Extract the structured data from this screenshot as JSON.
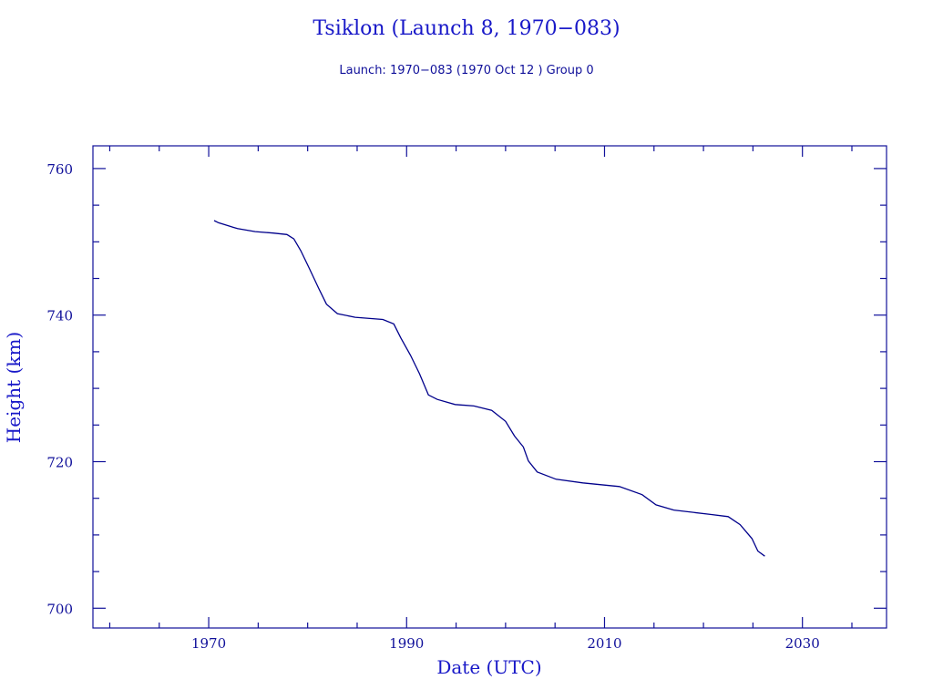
{
  "chart_data": {
    "type": "line",
    "title": "Tsiklon (Launch 8, 1970−083)",
    "subtitle": "Launch: 1970−083  (1970 Oct 12 )  Group 0",
    "xlabel": "Date (UTC)",
    "ylabel": "Height (km)",
    "xlim": [
      1958.3,
      2038.5
    ],
    "ylim": [
      697.3,
      763.1
    ],
    "xticks": [
      1970,
      1990,
      2010,
      2030
    ],
    "xminor_step": 5,
    "yticks": [
      700,
      720,
      740,
      760
    ],
    "yminor_step": 5,
    "grid": false,
    "colors": {
      "line": "#00008b",
      "axis": "#10109a"
    },
    "series": [
      {
        "name": "Height",
        "x": [
          1970.55,
          1971.0,
          1972.9,
          1974.7,
          1976.5,
          1977.9,
          1978.6,
          1979.3,
          1980.2,
          1981.1,
          1981.9,
          1983.0,
          1984.8,
          1987.6,
          1988.7,
          1989.4,
          1990.4,
          1991.3,
          1992.2,
          1993.1,
          1994.9,
          1996.8,
          1998.6,
          2000.0,
          2000.9,
          2001.8,
          2002.3,
          2003.2,
          2005.1,
          2007.8,
          2011.5,
          2013.8,
          2015.2,
          2017.0,
          2020.7,
          2022.5,
          2023.7,
          2024.9,
          2025.5,
          2026.2
        ],
        "y": [
          752.9,
          752.6,
          751.8,
          751.4,
          751.2,
          751.0,
          750.4,
          748.8,
          746.3,
          743.7,
          741.5,
          740.2,
          739.7,
          739.4,
          738.8,
          736.9,
          734.5,
          732.0,
          729.1,
          728.5,
          727.8,
          727.6,
          727.0,
          725.5,
          723.5,
          722.0,
          720.1,
          718.6,
          717.6,
          717.1,
          716.6,
          715.5,
          714.1,
          713.4,
          712.8,
          712.5,
          711.4,
          709.5,
          707.8,
          707.1
        ]
      }
    ]
  }
}
